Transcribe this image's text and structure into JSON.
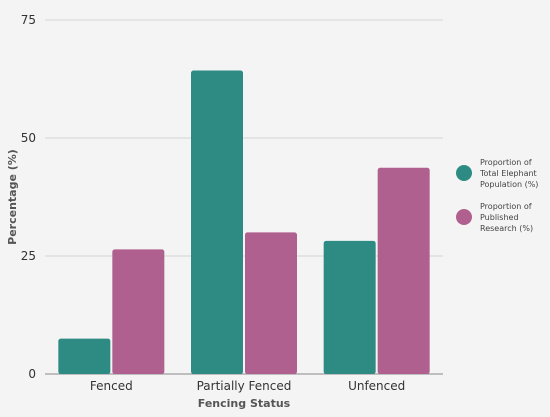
{
  "chart_data": {
    "type": "bar",
    "xlabel": "Fencing Status",
    "ylabel": "Percentage (%)",
    "categories": [
      "Fenced",
      "Partially Fenced",
      "Unfenced"
    ],
    "series": [
      {
        "name": "Proportion of Total Elephant Population (%)",
        "legend_lines": [
          "Proportion of",
          "Total Elephant",
          "Population (%)"
        ],
        "color": "#2e8b84",
        "values": [
          7.5,
          64.3,
          28.2
        ]
      },
      {
        "name": "Proportion of Published Research (%)",
        "legend_lines": [
          "Proportion of",
          "Published",
          "Research (%)"
        ],
        "color": "#b0608f",
        "values": [
          26.4,
          30.0,
          43.7
        ]
      }
    ],
    "ylim": [
      0,
      75
    ],
    "yticks": [
      "0",
      "25",
      "50",
      "75"
    ],
    "ytick_values": [
      0,
      25,
      50,
      75
    ],
    "grid": true,
    "legend_position": "right"
  }
}
